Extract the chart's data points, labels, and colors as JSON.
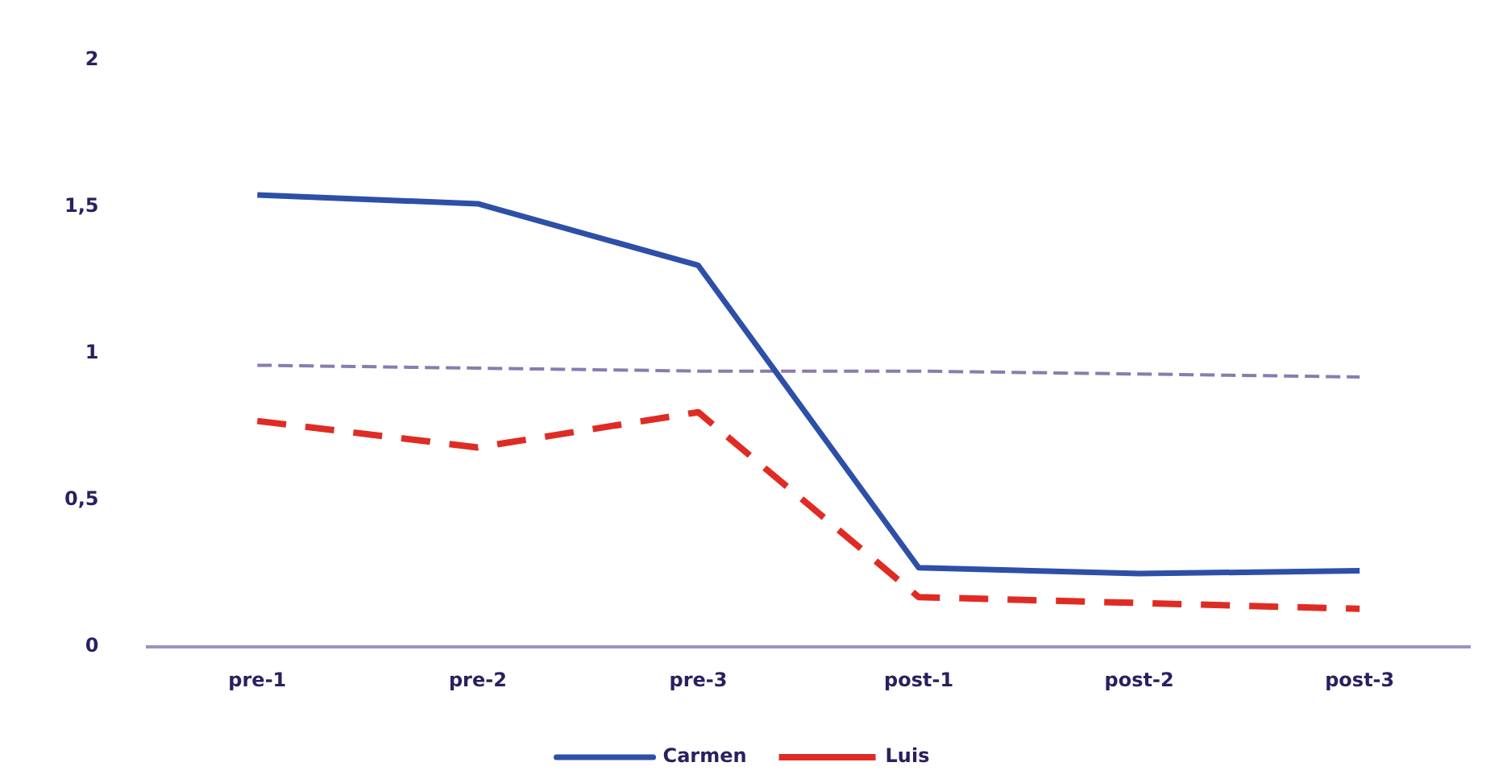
{
  "chart_data": {
    "type": "line",
    "categories": [
      "pre-1",
      "pre-2",
      "pre-3",
      "post-1",
      "post-2",
      "post-3"
    ],
    "series": [
      {
        "name": "Carmen",
        "color": "#2e4fa8",
        "line_style": "solid",
        "values": [
          1.54,
          1.51,
          1.3,
          0.27,
          0.25,
          0.26
        ]
      },
      {
        "name": "Luis",
        "color": "#e02b25",
        "line_style": "dashed",
        "values": [
          0.77,
          0.68,
          0.8,
          0.17,
          0.15,
          0.13
        ]
      },
      {
        "color": "#8a7bb0",
        "line_style": "dashed",
        "values": [
          0.96,
          0.95,
          0.94,
          0.94,
          0.93,
          0.92
        ]
      }
    ],
    "ylim": [
      0,
      2
    ],
    "yticks": [
      0,
      {
        "value": 0.5,
        "label": "0,5"
      },
      1,
      {
        "value": 1.5,
        "label": "1,5"
      },
      2
    ],
    "grid": false,
    "legend": "bottom",
    "marker": "none"
  }
}
